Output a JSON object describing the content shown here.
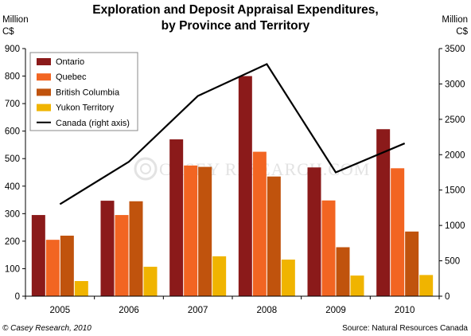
{
  "chart_data": {
    "type": "bar",
    "title": [
      "Exploration and Deposit Appraisal Expenditures,",
      "by Province and Territory"
    ],
    "categories": [
      "2005",
      "2006",
      "2007",
      "2008",
      "2009",
      "2010"
    ],
    "series": [
      {
        "name": "Ontario",
        "color": "#8B1A1A",
        "values": [
          295,
          347,
          570,
          800,
          468,
          607
        ]
      },
      {
        "name": "Quebec",
        "color": "#F26522",
        "values": [
          205,
          295,
          475,
          525,
          348,
          465
        ]
      },
      {
        "name": "British Columbia",
        "color": "#C0530D",
        "values": [
          220,
          345,
          470,
          435,
          178,
          235
        ]
      },
      {
        "name": "Yukon Territory",
        "color": "#F0B400",
        "values": [
          55,
          107,
          145,
          133,
          75,
          77
        ]
      }
    ],
    "line_series": {
      "name": "Canada (right axis)",
      "color": "#000000",
      "axis": "right",
      "values": [
        1300,
        1900,
        2830,
        3280,
        1750,
        2160
      ]
    },
    "left_axis": {
      "label": [
        "Million",
        "C$"
      ],
      "ylim": [
        0,
        900
      ],
      "ticks": [
        0,
        100,
        200,
        300,
        400,
        500,
        600,
        700,
        800,
        900
      ]
    },
    "right_axis": {
      "label": [
        "Million",
        "C$"
      ],
      "ylim": [
        0,
        3500
      ],
      "ticks": [
        0,
        500,
        1000,
        1500,
        2000,
        2500,
        3000,
        3500
      ]
    },
    "legend_position": "top-left",
    "grid": false,
    "watermark": "CASEY RESEARCH.COM",
    "copyright": "© Casey Research, 2010",
    "source": "Source: Natural Resources Canada"
  }
}
